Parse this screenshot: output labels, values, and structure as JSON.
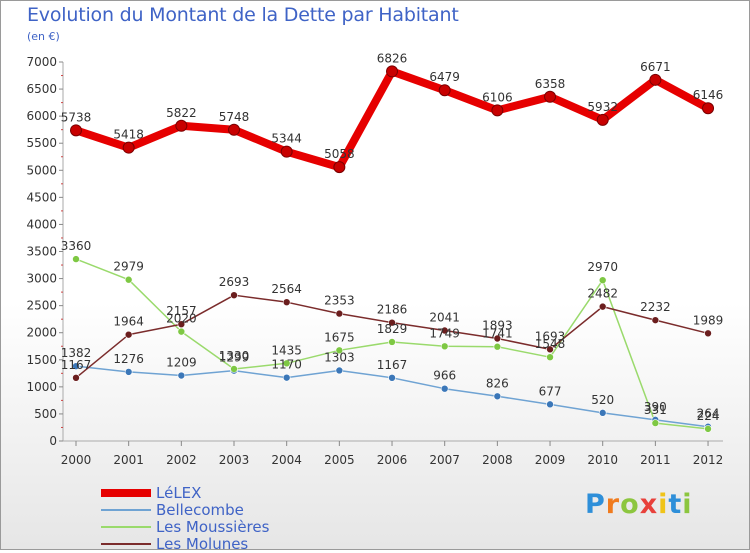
{
  "title": "Evolution du Montant de la Dette par Habitant",
  "unit": "(en €)",
  "logo": {
    "text": "Proxiti",
    "letter_colors": [
      "#2e8fd9",
      "#f07b1e",
      "#8cc63f",
      "#e8413b",
      "#f0c419",
      "#2e8fd9",
      "#8cc63f"
    ]
  },
  "chart_data": {
    "type": "line",
    "title": "Evolution du Montant de la Dette par Habitant",
    "ylabel": "(en €)",
    "x": [
      "2000",
      "2001",
      "2002",
      "2003",
      "2004",
      "2005",
      "2006",
      "2007",
      "2008",
      "2009",
      "2010",
      "2011",
      "2012"
    ],
    "ylim": [
      0,
      7000
    ],
    "yticks": [
      0,
      500,
      1000,
      1500,
      2000,
      2500,
      3000,
      3500,
      4000,
      4500,
      5000,
      5500,
      6000,
      6500,
      7000
    ],
    "grid": false,
    "legend_position": "bottom-left",
    "series": [
      {
        "name": "LéLEX",
        "color": "#e60000",
        "line_width": 8,
        "marker_color": "#c80000",
        "values": [
          5738,
          5418,
          5822,
          5748,
          5344,
          5058,
          6826,
          6479,
          6106,
          6358,
          5932,
          6671,
          6146
        ],
        "labels": [
          "5738",
          "5418",
          "5822",
          "5748",
          "5344",
          "5058",
          "6826",
          "6479",
          "6106",
          "6358",
          "5932",
          "6671",
          "6146"
        ]
      },
      {
        "name": "Bellecombe",
        "color": "#6fa3d3",
        "line_width": 1.5,
        "marker_color": "#3b77b8",
        "values": [
          1382,
          1276,
          1209,
          1299,
          1170,
          1303,
          1167,
          966,
          826,
          677,
          520,
          390,
          264
        ],
        "labels": [
          "1382",
          "1276",
          "1209",
          "1299",
          "1170",
          "1303",
          "1167",
          "966",
          "826",
          "677",
          "520",
          "390",
          "264"
        ]
      },
      {
        "name": "Les Moussières",
        "color": "#9ada6c",
        "line_width": 1.5,
        "marker_color": "#7ec843",
        "values": [
          3360,
          2979,
          2020,
          1330,
          1435,
          1675,
          1829,
          1749,
          1741,
          1548,
          2970,
          331,
          224
        ],
        "labels": [
          "3360",
          "2979",
          "2020",
          "1330",
          "1435",
          "1675",
          "1829",
          "1749",
          "1741",
          "1548",
          "2970",
          "331",
          "224"
        ]
      },
      {
        "name": "Les Molunes",
        "color": "#7b2c2c",
        "line_width": 1.5,
        "marker_color": "#6b1e1e",
        "values": [
          1167,
          1964,
          2157,
          2693,
          2564,
          2353,
          2186,
          2041,
          1893,
          1693,
          2482,
          2232,
          1989
        ],
        "labels": [
          "1167",
          "1964",
          "2157",
          "2693",
          "2564",
          "2353",
          "2186",
          "2041",
          "1893",
          "1693",
          "2482",
          "2232",
          "1989"
        ]
      }
    ]
  },
  "legend": [
    {
      "label": "LéLEX",
      "color": "#e60000",
      "thickness": 8
    },
    {
      "label": "Bellecombe",
      "color": "#6fa3d3",
      "thickness": 2
    },
    {
      "label": "Les Moussières",
      "color": "#9ada6c",
      "thickness": 2
    },
    {
      "label": "Les Molunes",
      "color": "#7b2c2c",
      "thickness": 2
    }
  ]
}
